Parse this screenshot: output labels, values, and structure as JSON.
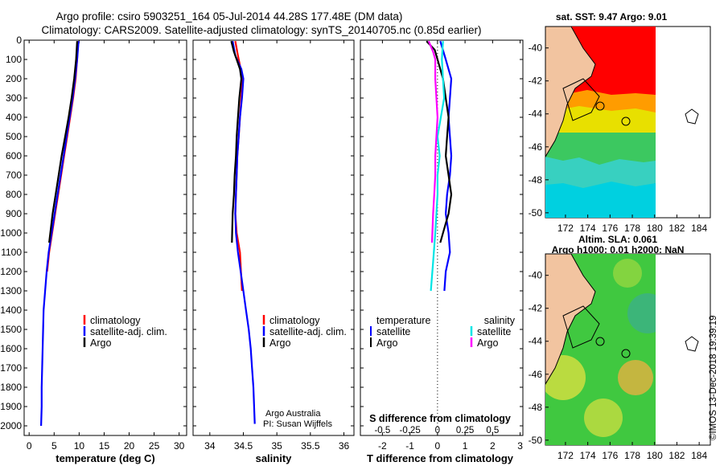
{
  "title": {
    "line1": "Argo profile: csiro 5903251_164 05-Jul-2014 44.28S 177.48E (DM data)",
    "line2": "Climatology: CARS2009. Satellite-adjusted climatology: synTS_20140705.nc (0.85d earlier)"
  },
  "depth_ticks": [
    0,
    100,
    200,
    300,
    400,
    500,
    600,
    700,
    800,
    900,
    1000,
    1100,
    1200,
    1300,
    1400,
    1500,
    1600,
    1700,
    1800,
    1900,
    2000
  ],
  "chart_data": [
    {
      "type": "line",
      "id": "temperature",
      "xlabel": "temperature (deg C)",
      "xlim": [
        -1,
        31.5
      ],
      "ylim": [
        2050,
        0
      ],
      "xticks": [
        0,
        5,
        10,
        15,
        20,
        25,
        30
      ],
      "legend": {
        "placement": "lower-middle",
        "entries": [
          "climatology",
          "satellite-adj. clim.",
          "Argo"
        ]
      },
      "series": [
        {
          "name": "climatology",
          "color": "#ff0000",
          "x": [
            9.8,
            9.6,
            9.3,
            8.8,
            8.2,
            7.6,
            7.0,
            6.4,
            5.8,
            5.2,
            4.6,
            4.0,
            3.6
          ],
          "y": [
            5,
            100,
            200,
            300,
            400,
            500,
            600,
            700,
            800,
            900,
            1000,
            1100,
            1200
          ]
        },
        {
          "name": "satellite-adj. clim.",
          "color": "#0000ff",
          "x": [
            9.9,
            9.6,
            9.2,
            8.7,
            8.1,
            7.5,
            6.9,
            6.3,
            5.7,
            5.1,
            4.5,
            3.9,
            3.5,
            3.2,
            2.9,
            2.8,
            2.7,
            2.6,
            2.5,
            2.5,
            2.4
          ],
          "y": [
            5,
            100,
            200,
            300,
            400,
            500,
            600,
            700,
            800,
            900,
            1000,
            1100,
            1200,
            1300,
            1400,
            1500,
            1600,
            1700,
            1800,
            1900,
            2000
          ]
        },
        {
          "name": "Argo",
          "color": "#000000",
          "x": [
            9.6,
            9.5,
            9.4,
            9.0,
            8.5,
            7.9,
            7.2,
            6.5,
            5.9,
            5.3,
            4.7,
            4.0
          ],
          "y": [
            5,
            50,
            100,
            200,
            300,
            400,
            500,
            600,
            700,
            800,
            900,
            1050
          ]
        }
      ]
    },
    {
      "type": "line",
      "id": "salinity",
      "xlabel": "salinity",
      "xlim": [
        33.75,
        36.15
      ],
      "ylim": [
        2050,
        0
      ],
      "xticks": [
        34,
        34.5,
        35,
        35.5,
        36
      ],
      "legend": {
        "placement": "lower-middle",
        "entries": [
          "climatology",
          "satellite-adj. clim.",
          "Argo"
        ]
      },
      "annotations": [
        "Argo Australia",
        "PI: Susan Wijffels"
      ],
      "series": [
        {
          "name": "climatology",
          "color": "#ff0000",
          "x": [
            34.38,
            34.42,
            34.46,
            34.49,
            34.47,
            34.45,
            34.43,
            34.41,
            34.4,
            34.39,
            34.38,
            34.4,
            34.45,
            34.48
          ],
          "y": [
            5,
            80,
            150,
            200,
            300,
            400,
            500,
            600,
            700,
            800,
            900,
            1000,
            1100,
            1300
          ]
        },
        {
          "name": "satellite-adj. clim.",
          "color": "#0000ff",
          "x": [
            34.34,
            34.38,
            34.47,
            34.5,
            34.48,
            34.45,
            34.43,
            34.41,
            34.4,
            34.39,
            34.38,
            34.39,
            34.42,
            34.46,
            34.5,
            34.54,
            34.58,
            34.61,
            34.63,
            34.65,
            34.67
          ],
          "y": [
            5,
            80,
            150,
            200,
            300,
            400,
            500,
            600,
            700,
            800,
            900,
            1000,
            1100,
            1200,
            1300,
            1400,
            1500,
            1600,
            1700,
            1800,
            1990
          ]
        },
        {
          "name": "Argo",
          "color": "#000000",
          "x": [
            34.32,
            34.36,
            34.4,
            34.45,
            34.47,
            34.44,
            34.42,
            34.4,
            34.39,
            34.37,
            34.36,
            34.34,
            34.33
          ],
          "y": [
            5,
            60,
            100,
            150,
            200,
            300,
            400,
            500,
            600,
            700,
            800,
            900,
            1050
          ]
        }
      ]
    },
    {
      "type": "line",
      "id": "difference",
      "xlabel": "T difference from climatology",
      "top_xlabel": "S difference from climatology",
      "xlim": [
        -2.8,
        3.1
      ],
      "ylim": [
        2050,
        0
      ],
      "xticks": [
        -2,
        -1,
        0,
        1,
        2,
        3
      ],
      "top_xticks": [
        "-0.5",
        "-0.25",
        "0",
        "0.25",
        "0.5"
      ],
      "top_xtick_values": [
        -0.5,
        -0.25,
        0,
        0.25,
        0.5
      ],
      "legend": {
        "placement": "lower",
        "headers": [
          "temperature",
          "salinity"
        ],
        "entries_left": [
          "satellite",
          "Argo"
        ],
        "entries_right": [
          "satellite",
          "Argo"
        ]
      },
      "series": [
        {
          "name": "temperature satellite",
          "color": "#0000ff",
          "x": [
            0.1,
            0.3,
            0.5,
            0.45,
            0.4,
            0.45,
            0.5,
            0.45,
            0.35,
            0.3,
            0.4,
            0.45,
            0.3,
            0.25
          ],
          "y": [
            5,
            100,
            200,
            300,
            400,
            500,
            600,
            700,
            800,
            900,
            1000,
            1100,
            1200,
            1300
          ]
        },
        {
          "name": "temperature Argo",
          "color": "#000000",
          "x": [
            -0.4,
            -0.1,
            0.0,
            0.1,
            0.2,
            0.3,
            0.4,
            0.35,
            0.3,
            0.4,
            0.5,
            0.45,
            0.4,
            0.3,
            0.2,
            0.1
          ],
          "y": [
            5,
            50,
            100,
            150,
            200,
            300,
            400,
            500,
            600,
            700,
            800,
            850,
            900,
            950,
            1000,
            1050
          ]
        },
        {
          "name": "salinity satellite",
          "color": "#00e5e5",
          "x": [
            0.05,
            0.04,
            0.05,
            0.06,
            0.03,
            0.0,
            0.02,
            0.0,
            0.0,
            -0.02,
            -0.04,
            -0.06
          ],
          "y": [
            5,
            100,
            200,
            300,
            400,
            500,
            600,
            700,
            800,
            1000,
            1150,
            1300
          ]
        },
        {
          "name": "salinity Argo",
          "color": "#ff00ff",
          "x": [
            -0.08,
            -0.04,
            -0.02,
            -0.02,
            -0.01,
            0.0,
            -0.01,
            -0.02,
            -0.02,
            -0.03,
            -0.04,
            -0.05
          ],
          "y": [
            5,
            60,
            100,
            200,
            300,
            400,
            500,
            600,
            700,
            800,
            900,
            1050
          ]
        }
      ]
    }
  ],
  "maps": {
    "xticks": [
      172,
      174,
      176,
      178,
      180,
      182,
      184
    ],
    "yticks": [
      -40,
      -42,
      -44,
      -46,
      -48,
      -50
    ],
    "sst": {
      "title": "sat. SST: 9.47 Argo: 9.01"
    },
    "sla": {
      "title_line1": "Altim. SLA: 0.061",
      "title_line2": "Argo h1000: 0.01 h2000: NaN"
    }
  },
  "credit": "©IMOS 13-Dec-2018 19:39:19",
  "colors": {
    "climatology": "#ff0000",
    "satellite": "#0000ff",
    "argo": "#000000",
    "sal_satellite": "#00e5e5",
    "sal_argo": "#ff00ff",
    "land": "#f2c4a0"
  }
}
